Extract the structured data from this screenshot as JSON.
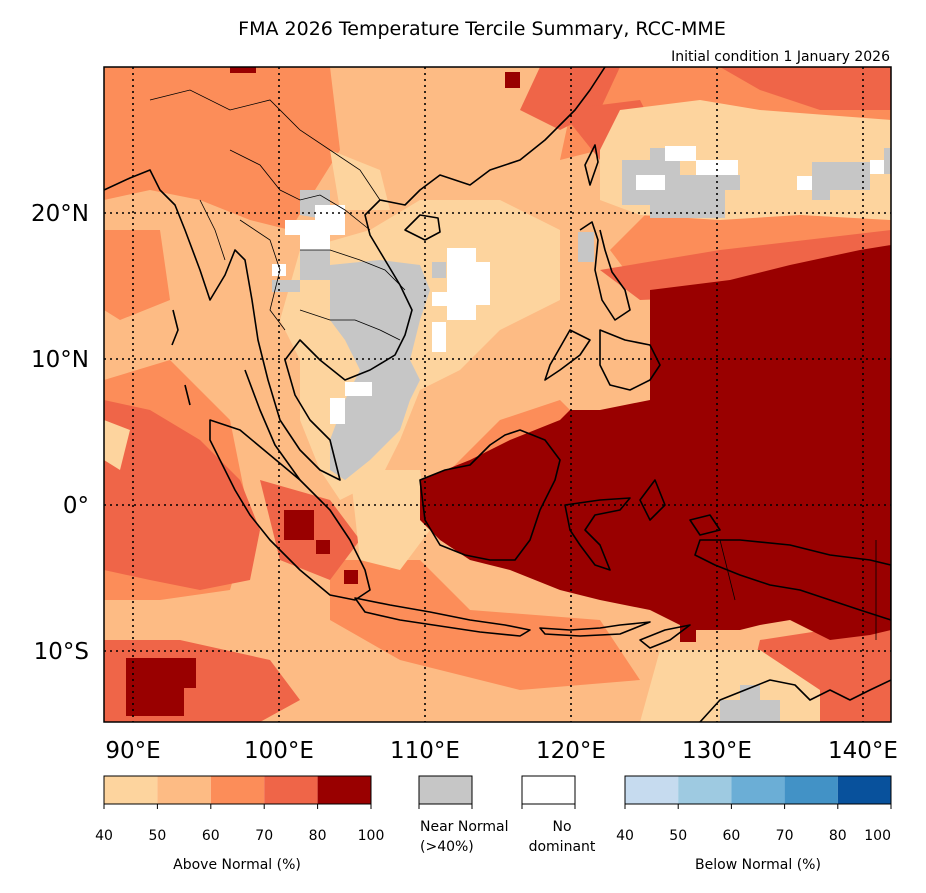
{
  "map": {
    "title": "FMA 2026 Temperature Tercile Summary, RCC-MME",
    "subtitle": "Initial condition 1 January 2026",
    "lon_range": [
      88,
      142
    ],
    "lat_range": [
      -15,
      30
    ],
    "lat_labels": [
      {
        "value": 20,
        "text": "20°N"
      },
      {
        "value": 10,
        "text": "10°N"
      },
      {
        "value": 0,
        "text": "0°"
      },
      {
        "value": -10,
        "text": "10°S"
      }
    ],
    "lon_labels": [
      {
        "value": 90,
        "text": "90°E"
      },
      {
        "value": 100,
        "text": "100°E"
      },
      {
        "value": 110,
        "text": "110°E"
      },
      {
        "value": 120,
        "text": "120°E"
      },
      {
        "value": 130,
        "text": "130°E"
      },
      {
        "value": 140,
        "text": "140°E"
      }
    ]
  },
  "legend": {
    "above": {
      "label": "Above Normal (%)",
      "ticks": [
        "40",
        "50",
        "60",
        "70",
        "80",
        "100"
      ],
      "colors": [
        "#fdd49e",
        "#fdbb84",
        "#fc8d59",
        "#ef6548",
        "#990000"
      ]
    },
    "near_normal": {
      "line1": "Near Normal",
      "line2": "(>40%)",
      "color": "#c6c6c6"
    },
    "no_dominant": {
      "line1": "No",
      "line2": "dominant",
      "color": "#ffffff"
    },
    "below": {
      "label": "Below Normal (%)",
      "ticks": [
        "40",
        "50",
        "60",
        "70",
        "80",
        "100"
      ],
      "colors": [
        "#c6dbef",
        "#9ecae1",
        "#6baed6",
        "#4292c6",
        "#08519c"
      ]
    }
  }
}
